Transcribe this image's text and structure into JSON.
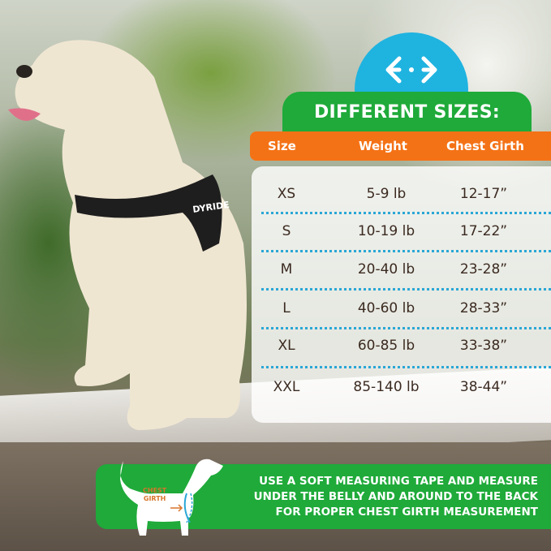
{
  "brand_logo_text": "DYRIDE",
  "icon": "width-arrows-icon",
  "title": "DIFFERENT SIZES:",
  "columns": [
    "Size",
    "Weight",
    "Chest Girth"
  ],
  "rows": [
    {
      "size": "XS",
      "weight": "5-9 lb",
      "girth": "12-17”"
    },
    {
      "size": "S",
      "weight": "10-19 lb",
      "girth": "17-22”"
    },
    {
      "size": "M",
      "weight": "20-40 lb",
      "girth": "23-28”"
    },
    {
      "size": "L",
      "weight": "40-60 lb",
      "girth": "28-33”"
    },
    {
      "size": "XL",
      "weight": "60-85 lb",
      "girth": "33-38”"
    },
    {
      "size": "XXL",
      "weight": "85-140 lb",
      "girth": "38-44”"
    }
  ],
  "diagram_label": [
    "CHEST",
    "GIRTH"
  ],
  "instructions": [
    "USE A SOFT MEASURING TAPE AND MEASURE",
    "UNDER THE BELLY AND AROUND TO THE BACK",
    "FOR PROPER CHEST GIRTH MEASUREMENT"
  ],
  "colors": {
    "green": "#1faa3a",
    "orange": "#f47216",
    "blue": "#1fb3e0",
    "text": "#3b2a20"
  }
}
